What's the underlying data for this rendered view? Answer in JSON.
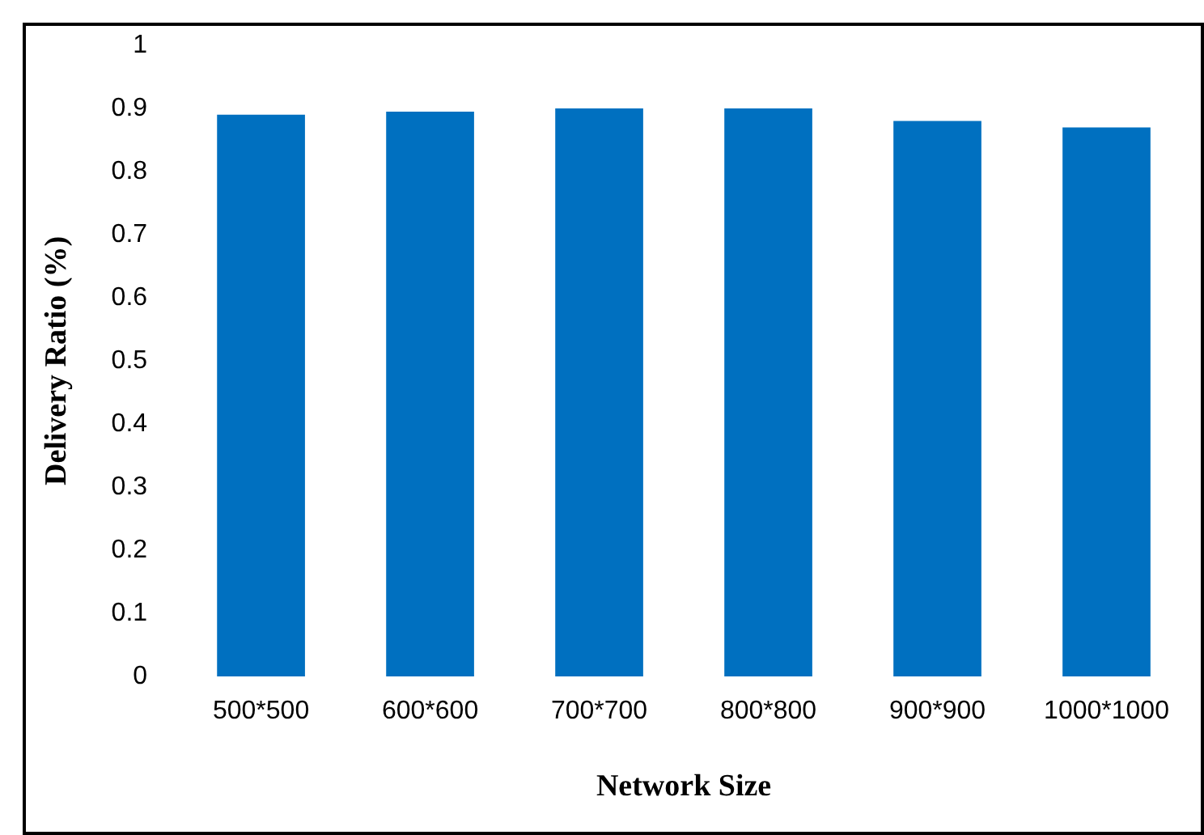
{
  "chart_data": {
    "type": "bar",
    "xlabel": "Network Size",
    "ylabel": "Delivery Ratio (%)",
    "categories": [
      "500*500",
      "600*600",
      "700*700",
      "800*800",
      "900*900",
      "1000*1000"
    ],
    "values": [
      0.89,
      0.895,
      0.9,
      0.9,
      0.88,
      0.87
    ],
    "color": "#0070c0",
    "ylim": [
      0,
      1
    ],
    "yticks": [
      0,
      0.1,
      0.2,
      0.3,
      0.4,
      0.5,
      0.6,
      0.7,
      0.8,
      0.9,
      1
    ],
    "grid": false,
    "legend": false
  }
}
